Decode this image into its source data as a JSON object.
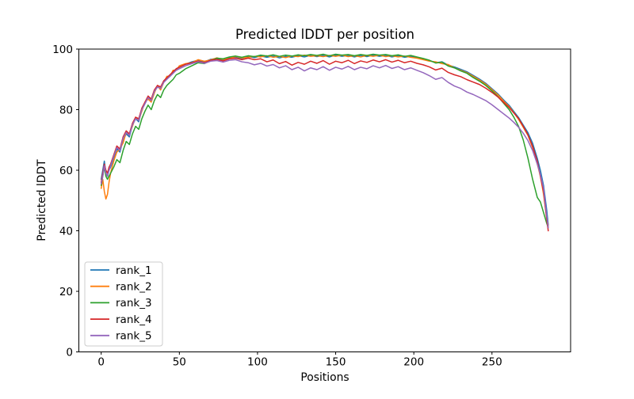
{
  "chart_data": {
    "type": "line",
    "title": "Predicted lDDT per position",
    "xlabel": "Positions",
    "ylabel": "Predicted lDDT",
    "xlim": [
      -14.3,
      300.3
    ],
    "ylim": [
      0,
      100
    ],
    "xticks": [
      0,
      50,
      100,
      150,
      200,
      250
    ],
    "yticks": [
      0,
      20,
      40,
      60,
      80,
      100
    ],
    "grid": false,
    "legend": {
      "position": "lower-left",
      "edge_color": "#cccccc",
      "background": "#ffffff"
    },
    "x": [
      0,
      1,
      2,
      3,
      4,
      5,
      6,
      8,
      10,
      12,
      14,
      16,
      18,
      20,
      22,
      24,
      26,
      28,
      30,
      32,
      34,
      36,
      38,
      40,
      42,
      44,
      46,
      48,
      50,
      54,
      58,
      62,
      66,
      70,
      74,
      78,
      82,
      86,
      90,
      94,
      98,
      102,
      106,
      110,
      114,
      118,
      122,
      126,
      130,
      134,
      138,
      142,
      146,
      150,
      154,
      158,
      162,
      166,
      170,
      174,
      178,
      182,
      186,
      190,
      194,
      198,
      202,
      206,
      210,
      214,
      218,
      222,
      226,
      230,
      234,
      238,
      242,
      246,
      250,
      254,
      258,
      261,
      264,
      267,
      270,
      273,
      276,
      279,
      281,
      283,
      285,
      286
    ],
    "series": [
      {
        "name": "rank_1",
        "color": "#1f77b4",
        "y": [
          57,
          60,
          63,
          59,
          58,
          60,
          61,
          64,
          67,
          66,
          70,
          72,
          71,
          75,
          77,
          76,
          80,
          82,
          84,
          83,
          86,
          87.5,
          87,
          89.5,
          90.5,
          91.5,
          92.5,
          93.5,
          94,
          95,
          95.8,
          96.3,
          95.8,
          96.6,
          96.9,
          96.4,
          97.1,
          97.4,
          96.9,
          97.5,
          97.2,
          97.7,
          97.3,
          97.7,
          97.1,
          97.6,
          97.3,
          97.8,
          97.4,
          97.9,
          97.5,
          97.9,
          97.4,
          98,
          97.6,
          97.9,
          97.4,
          97.9,
          97.5,
          98,
          97.6,
          97.9,
          97.4,
          97.8,
          97.3,
          97.6,
          97.1,
          96.7,
          96.2,
          95.5,
          95.8,
          94.7,
          94.1,
          93.3,
          92.5,
          91.3,
          90.1,
          88.7,
          86.9,
          85.1,
          82.9,
          81.4,
          79.4,
          77.4,
          74.9,
          72.4,
          68.9,
          63.9,
          59.9,
          54.9,
          46.9,
          41.9
        ]
      },
      {
        "name": "rank_2",
        "color": "#ff7f0e",
        "y": [
          54,
          57,
          53,
          50.5,
          52,
          56,
          59,
          63,
          66,
          67,
          69,
          72.5,
          72,
          74.5,
          77.5,
          76.5,
          79.5,
          82.5,
          83.5,
          82.5,
          85.5,
          88,
          86.5,
          89,
          91,
          91,
          93,
          93,
          94.5,
          95.2,
          95.5,
          96.5,
          96,
          96.4,
          97.1,
          96.6,
          96.9,
          97.6,
          97.1,
          97.3,
          97.6,
          97.4,
          97.8,
          97.3,
          97.6,
          97.2,
          97.7,
          97.5,
          98,
          97.6,
          97.8,
          97.5,
          97.9,
          97.6,
          98,
          97.5,
          97.8,
          97.4,
          97.9,
          97.6,
          98,
          97.5,
          97.8,
          97.4,
          97.7,
          97.3,
          97,
          96.5,
          96,
          95.8,
          95.2,
          94.9,
          93.8,
          93,
          92.2,
          91,
          89.8,
          88.4,
          86.6,
          84.8,
          82.5,
          81,
          79,
          76.8,
          74.2,
          71.5,
          67.5,
          62,
          58,
          52,
          44.5,
          41.5
        ]
      },
      {
        "name": "rank_3",
        "color": "#2ca02c",
        "y": [
          55,
          58,
          61,
          58,
          57,
          58,
          59,
          61,
          63.5,
          62.5,
          66.5,
          69.5,
          68.5,
          72,
          74.5,
          73.5,
          77,
          79.5,
          81.5,
          80,
          83,
          85,
          84,
          86.5,
          88,
          89,
          90,
          91.5,
          92,
          93.5,
          94.5,
          95.5,
          95.2,
          96.2,
          97,
          96.8,
          97.4,
          97.7,
          97.3,
          97.8,
          97.5,
          98,
          97.7,
          98.1,
          97.6,
          98,
          97.7,
          98.1,
          97.8,
          98.2,
          97.9,
          98.3,
          97.8,
          98.3,
          98,
          98.2,
          97.8,
          98.2,
          97.9,
          98.3,
          98,
          98.2,
          97.8,
          98.1,
          97.6,
          97.9,
          97.4,
          96.9,
          96.3,
          95.4,
          95.7,
          94.4,
          93.8,
          92.8,
          92,
          90.6,
          89.4,
          88,
          86.2,
          84.2,
          81.8,
          80,
          77.5,
          74.5,
          70,
          64,
          57,
          51,
          49.5,
          46,
          42.5,
          41
        ]
      },
      {
        "name": "rank_4",
        "color": "#d62728",
        "y": [
          56,
          59,
          62,
          60,
          59,
          61,
          62,
          65,
          68,
          67,
          71,
          73,
          72,
          75.5,
          77.5,
          77,
          80.5,
          82.5,
          84.5,
          83.5,
          86.5,
          88,
          87.5,
          89.5,
          90.5,
          91.5,
          92.5,
          93.5,
          94,
          95,
          95.5,
          96,
          95.5,
          96.3,
          96.6,
          96.1,
          96.8,
          97,
          96.5,
          97,
          96.5,
          96.8,
          95.8,
          96.4,
          95.2,
          95.9,
          94.7,
          95.6,
          95,
          96,
          95.3,
          96.2,
          95,
          96,
          95.5,
          96.3,
          95.2,
          96.1,
          95.6,
          96.4,
          95.8,
          96.5,
          95.7,
          96.3,
          95.5,
          96,
          95.3,
          94.8,
          94.1,
          93.1,
          93.7,
          92.3,
          91.5,
          90.9,
          89.9,
          89.1,
          88.3,
          87.1,
          85.7,
          84.1,
          82.1,
          80.7,
          78.9,
          77.1,
          74.5,
          71.7,
          67.9,
          62.9,
          57.9,
          52.9,
          43.9,
          40
        ]
      },
      {
        "name": "rank_5",
        "color": "#9467bd",
        "y": [
          55.5,
          58,
          61.5,
          59,
          58,
          60,
          61.5,
          64.5,
          67.5,
          66.5,
          70.5,
          72.5,
          71.5,
          75,
          77,
          76.5,
          80,
          82,
          84,
          83,
          86,
          87.5,
          87,
          89,
          90,
          91,
          92,
          93,
          93.5,
          94.5,
          95.2,
          95.8,
          95.3,
          96,
          96.2,
          95.7,
          96.3,
          96.5,
          95.8,
          95.5,
          94.8,
          95.3,
          94.4,
          94.9,
          93.8,
          94.5,
          93.2,
          94,
          92.8,
          93.8,
          93.2,
          94.2,
          93,
          94,
          93.4,
          94.3,
          93.2,
          94,
          93.5,
          94.5,
          93.8,
          94.6,
          93.6,
          94.2,
          93.2,
          93.8,
          93,
          92.2,
          91.2,
          90,
          90.6,
          89,
          87.8,
          87,
          85.8,
          85,
          84,
          83,
          81.6,
          80,
          78.4,
          77.2,
          75.8,
          74.2,
          72.2,
          69.8,
          66.5,
          62,
          58.5,
          54,
          45,
          41
        ]
      }
    ]
  }
}
